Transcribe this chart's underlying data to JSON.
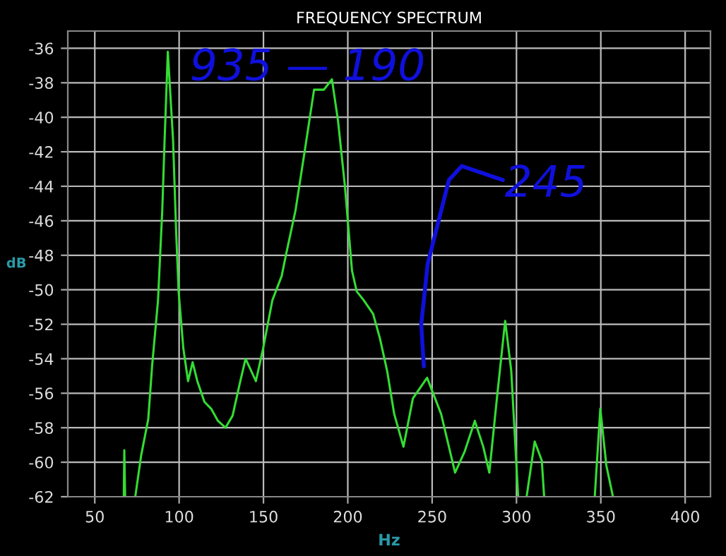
{
  "chart_data": {
    "type": "line",
    "title": "FREQUENCY SPECTRUM",
    "xlabel": "Hz",
    "ylabel": "dB",
    "series": [
      {
        "color": "#33dd33",
        "x": [
          67.2,
          67.5,
          68,
          69,
          74,
          77.5,
          81.7,
          84,
          87.5,
          90,
          91.4,
          93.3,
          96.4,
          98.3,
          99.7,
          102.5,
          105.3,
          108,
          110.8,
          115,
          119,
          123,
          127.5,
          131.7,
          135.8,
          139.4,
          145.5,
          149.8,
          155.3,
          160.8,
          163.5,
          169,
          174.7,
          180,
          185.8,
          190.6,
          194.2,
          198.3,
          202.5,
          205.3,
          209.4,
          215,
          219,
          223.3,
          227.5,
          233,
          238.6,
          247,
          255.3,
          263.6,
          269.2,
          275.3,
          280.3,
          283.9,
          288.6,
          293.3,
          296.9,
          301,
          303,
          306,
          310.8,
          315,
          316.4,
          330,
          346.4,
          349.7,
          353.3,
          357.2
        ],
        "values": [
          -62,
          -59.3,
          -62,
          null,
          -62,
          -59.6,
          -57.5,
          -54.4,
          -50.6,
          -45.4,
          -41.3,
          -36.2,
          -41.3,
          -46.8,
          -50.1,
          -53.4,
          -55.3,
          -54.2,
          -55.3,
          -56.5,
          -56.9,
          -57.6,
          -58,
          -57.3,
          -55.5,
          -54,
          -55.3,
          -53.4,
          -50.6,
          -49.2,
          -47.9,
          -45.4,
          -41.8,
          -38.4,
          -38.4,
          -37.8,
          -40.2,
          -44,
          -48.9,
          -50.1,
          -50.6,
          -51.4,
          -52.8,
          -54.7,
          -57.2,
          -59.1,
          -56.3,
          -55.1,
          -57.2,
          -60.6,
          -59.4,
          -57.6,
          -59.1,
          -60.6,
          -56.1,
          -51.8,
          -54.7,
          -62,
          null,
          -62,
          -58.8,
          -59.9,
          -62,
          null,
          -62,
          -56.9,
          -60.2,
          -62
        ]
      }
    ],
    "xlim": [
      34,
      415
    ],
    "ylim": [
      -62,
      -35
    ],
    "xticks": [
      50,
      100,
      150,
      200,
      250,
      300,
      350,
      400
    ],
    "yticks": [
      -62,
      -60,
      -58,
      -56,
      -54,
      -52,
      -50,
      -48,
      -46,
      -44,
      -42,
      -40,
      -38,
      -36
    ],
    "grid": true,
    "legend": false,
    "annotations": [
      "935 — 190",
      "245"
    ]
  }
}
